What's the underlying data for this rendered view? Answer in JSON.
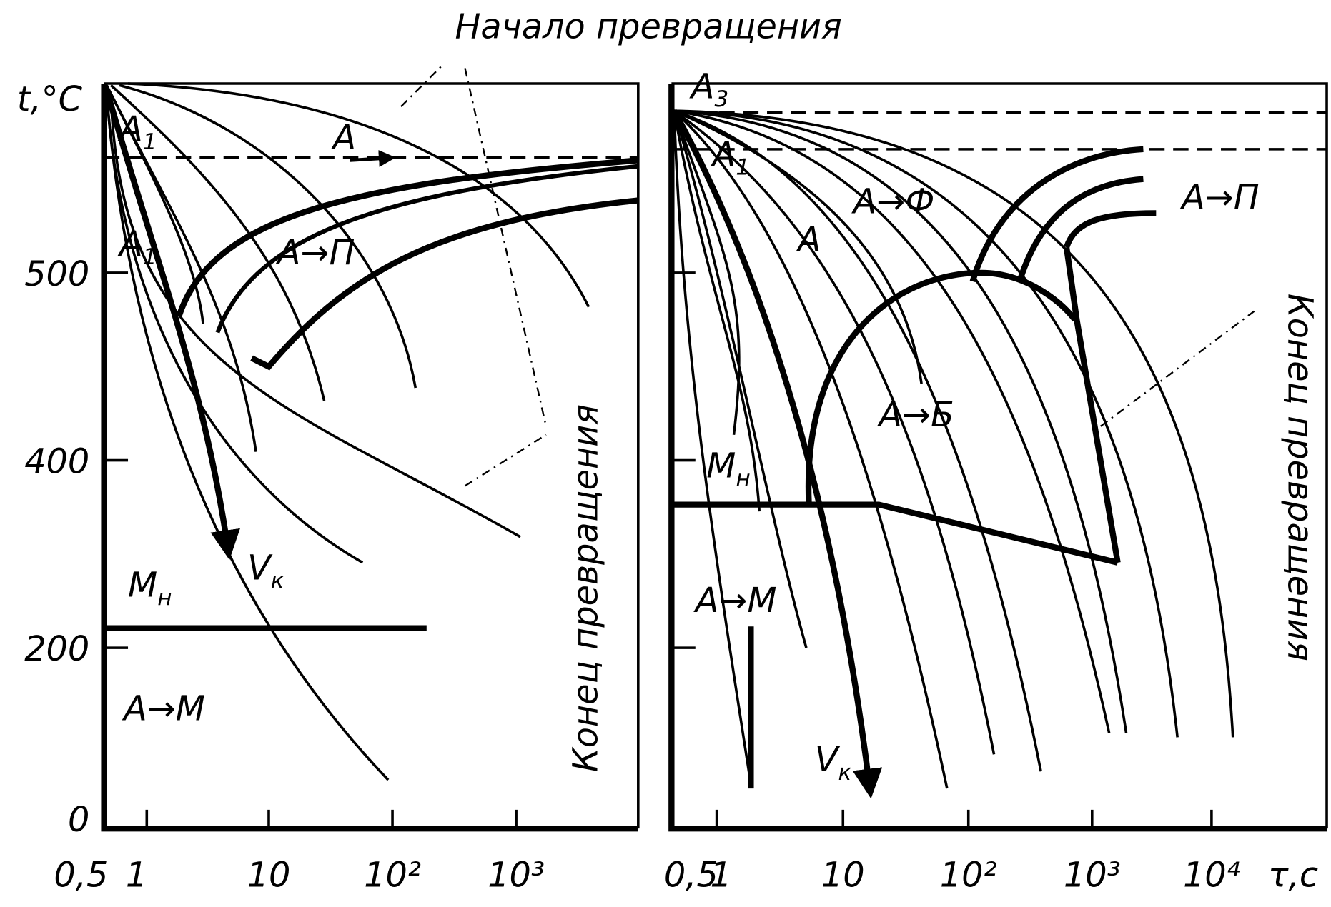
{
  "caption_start": "Начало превращения",
  "y_axis": {
    "label": "t,°C",
    "ticks": [
      "500",
      "400",
      "200",
      "0"
    ]
  },
  "x_axis": {
    "unit": "τ,с",
    "left_ticks": [
      "0,5",
      "1",
      "10",
      "10²",
      "10³"
    ],
    "right_ticks": [
      "0,5",
      "1",
      "10",
      "10²",
      "10³",
      "10⁴"
    ]
  },
  "left_panel": {
    "labels": [
      {
        "text": "A",
        "sub": "1"
      },
      {
        "text": "A"
      },
      {
        "text": "A",
        "sub": "1"
      },
      {
        "text": "A→П"
      },
      {
        "text": "V",
        "sub": "к"
      },
      {
        "text": "M",
        "sub": "н"
      },
      {
        "text": "A→M"
      }
    ],
    "caption_end": "Конец превращения"
  },
  "right_panel": {
    "labels": [
      {
        "text": "A",
        "sub": "3"
      },
      {
        "text": "A",
        "sub": "1"
      },
      {
        "text": "A→Ф"
      },
      {
        "text": "A"
      },
      {
        "text": "A→П"
      },
      {
        "text": "A→Б"
      },
      {
        "text": "M",
        "sub": "н"
      },
      {
        "text": "A→M"
      },
      {
        "text": "V",
        "sub": "к"
      }
    ],
    "caption_end": "Конец превращения"
  }
}
